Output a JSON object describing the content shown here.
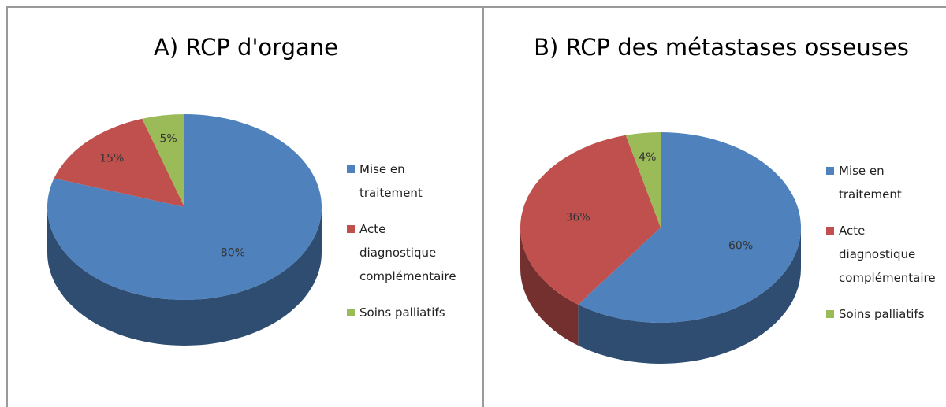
{
  "chart_data": [
    {
      "type": "pie",
      "title": "A) RCP d'organe",
      "categories": [
        "Mise en traitement",
        "Acte diagnostique complémentaire",
        "Soins palliatifs"
      ],
      "values": [
        80,
        15,
        5
      ],
      "value_labels": [
        "80%",
        "15%",
        "5%"
      ],
      "colors": [
        "#4f81bd",
        "#c0504d",
        "#9bbb59"
      ],
      "legend": "right"
    },
    {
      "type": "pie",
      "title": "B) RCP des métastases osseuses",
      "categories": [
        "Mise en traitement",
        "Acte diagnostique complémentaire",
        "Soins palliatifs"
      ],
      "values": [
        60,
        36,
        4
      ],
      "value_labels": [
        "60%",
        "36%",
        "4%"
      ],
      "colors": [
        "#4f81bd",
        "#c0504d",
        "#9bbb59"
      ],
      "legend": "right"
    }
  ]
}
